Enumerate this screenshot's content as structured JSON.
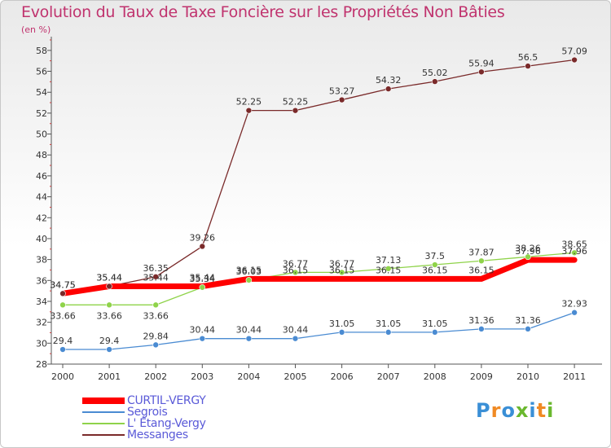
{
  "chart_data": {
    "type": "line",
    "title": "Evolution du Taux de Taxe Foncière sur les Propriétés Non Bâties",
    "ylabel": "(en %)",
    "xlabel": "",
    "ylim": [
      28,
      59
    ],
    "yticks": [
      28,
      30,
      32,
      34,
      36,
      38,
      40,
      42,
      44,
      46,
      48,
      50,
      52,
      54,
      56,
      58
    ],
    "categories": [
      "2000",
      "2001",
      "2002",
      "2003",
      "2004",
      "2005",
      "2006",
      "2007",
      "2008",
      "2009",
      "2010",
      "2011"
    ],
    "series": [
      {
        "name": "CURTIL-VERGY",
        "color": "#ff0000",
        "values": [
          34.75,
          35.44,
          35.44,
          35.44,
          36.15,
          36.15,
          36.15,
          36.15,
          36.15,
          36.15,
          37.96,
          37.96
        ],
        "labels": [
          "34.75",
          "35.44",
          "35.44",
          "35.44",
          "36.15",
          "36.15",
          "36.15",
          "36.15",
          "36.15",
          "36.15",
          "37.96",
          "37.96"
        ]
      },
      {
        "name": "Segrois",
        "color": "#4a8bd2",
        "values": [
          29.4,
          29.4,
          29.84,
          30.44,
          30.44,
          30.44,
          31.05,
          31.05,
          31.05,
          31.36,
          31.36,
          32.93
        ],
        "labels": [
          "29.4",
          "29.4",
          "29.84",
          "30.44",
          "30.44",
          "30.44",
          "31.05",
          "31.05",
          "31.05",
          "31.36",
          "31.36",
          "32.93"
        ]
      },
      {
        "name": "L' Étang-Vergy",
        "color": "#8fd34a",
        "values": [
          33.66,
          33.66,
          33.66,
          35.34,
          36.03,
          36.77,
          36.77,
          37.13,
          37.5,
          37.87,
          38.26,
          38.65
        ],
        "labels": [
          "33.66",
          "33.66",
          "33.66",
          "35.34",
          "36.03",
          "36.77",
          "36.77",
          "37.13",
          "37.5",
          "37.87",
          "38.26",
          "38.65"
        ]
      },
      {
        "name": "Messanges",
        "color": "#7a2a2a",
        "values": [
          34.75,
          35.44,
          36.35,
          39.26,
          52.25,
          52.25,
          53.27,
          54.32,
          55.02,
          55.94,
          56.5,
          57.09
        ],
        "labels": [
          "34.75",
          "35.44",
          "36.35",
          "39.26",
          "52.25",
          "52.25",
          "53.27",
          "54.32",
          "55.02",
          "55.94",
          "56.5",
          "57.09"
        ]
      }
    ],
    "legend_position": "bottom-left"
  },
  "logo": {
    "letters": [
      "P",
      "r",
      "o",
      "x",
      "i",
      "t",
      "i"
    ],
    "colors": [
      "#3a8fd6",
      "#f08a24",
      "#3a8fd6",
      "#6ab82e",
      "#3a8fd6",
      "#f08a24",
      "#6ab82e"
    ]
  }
}
